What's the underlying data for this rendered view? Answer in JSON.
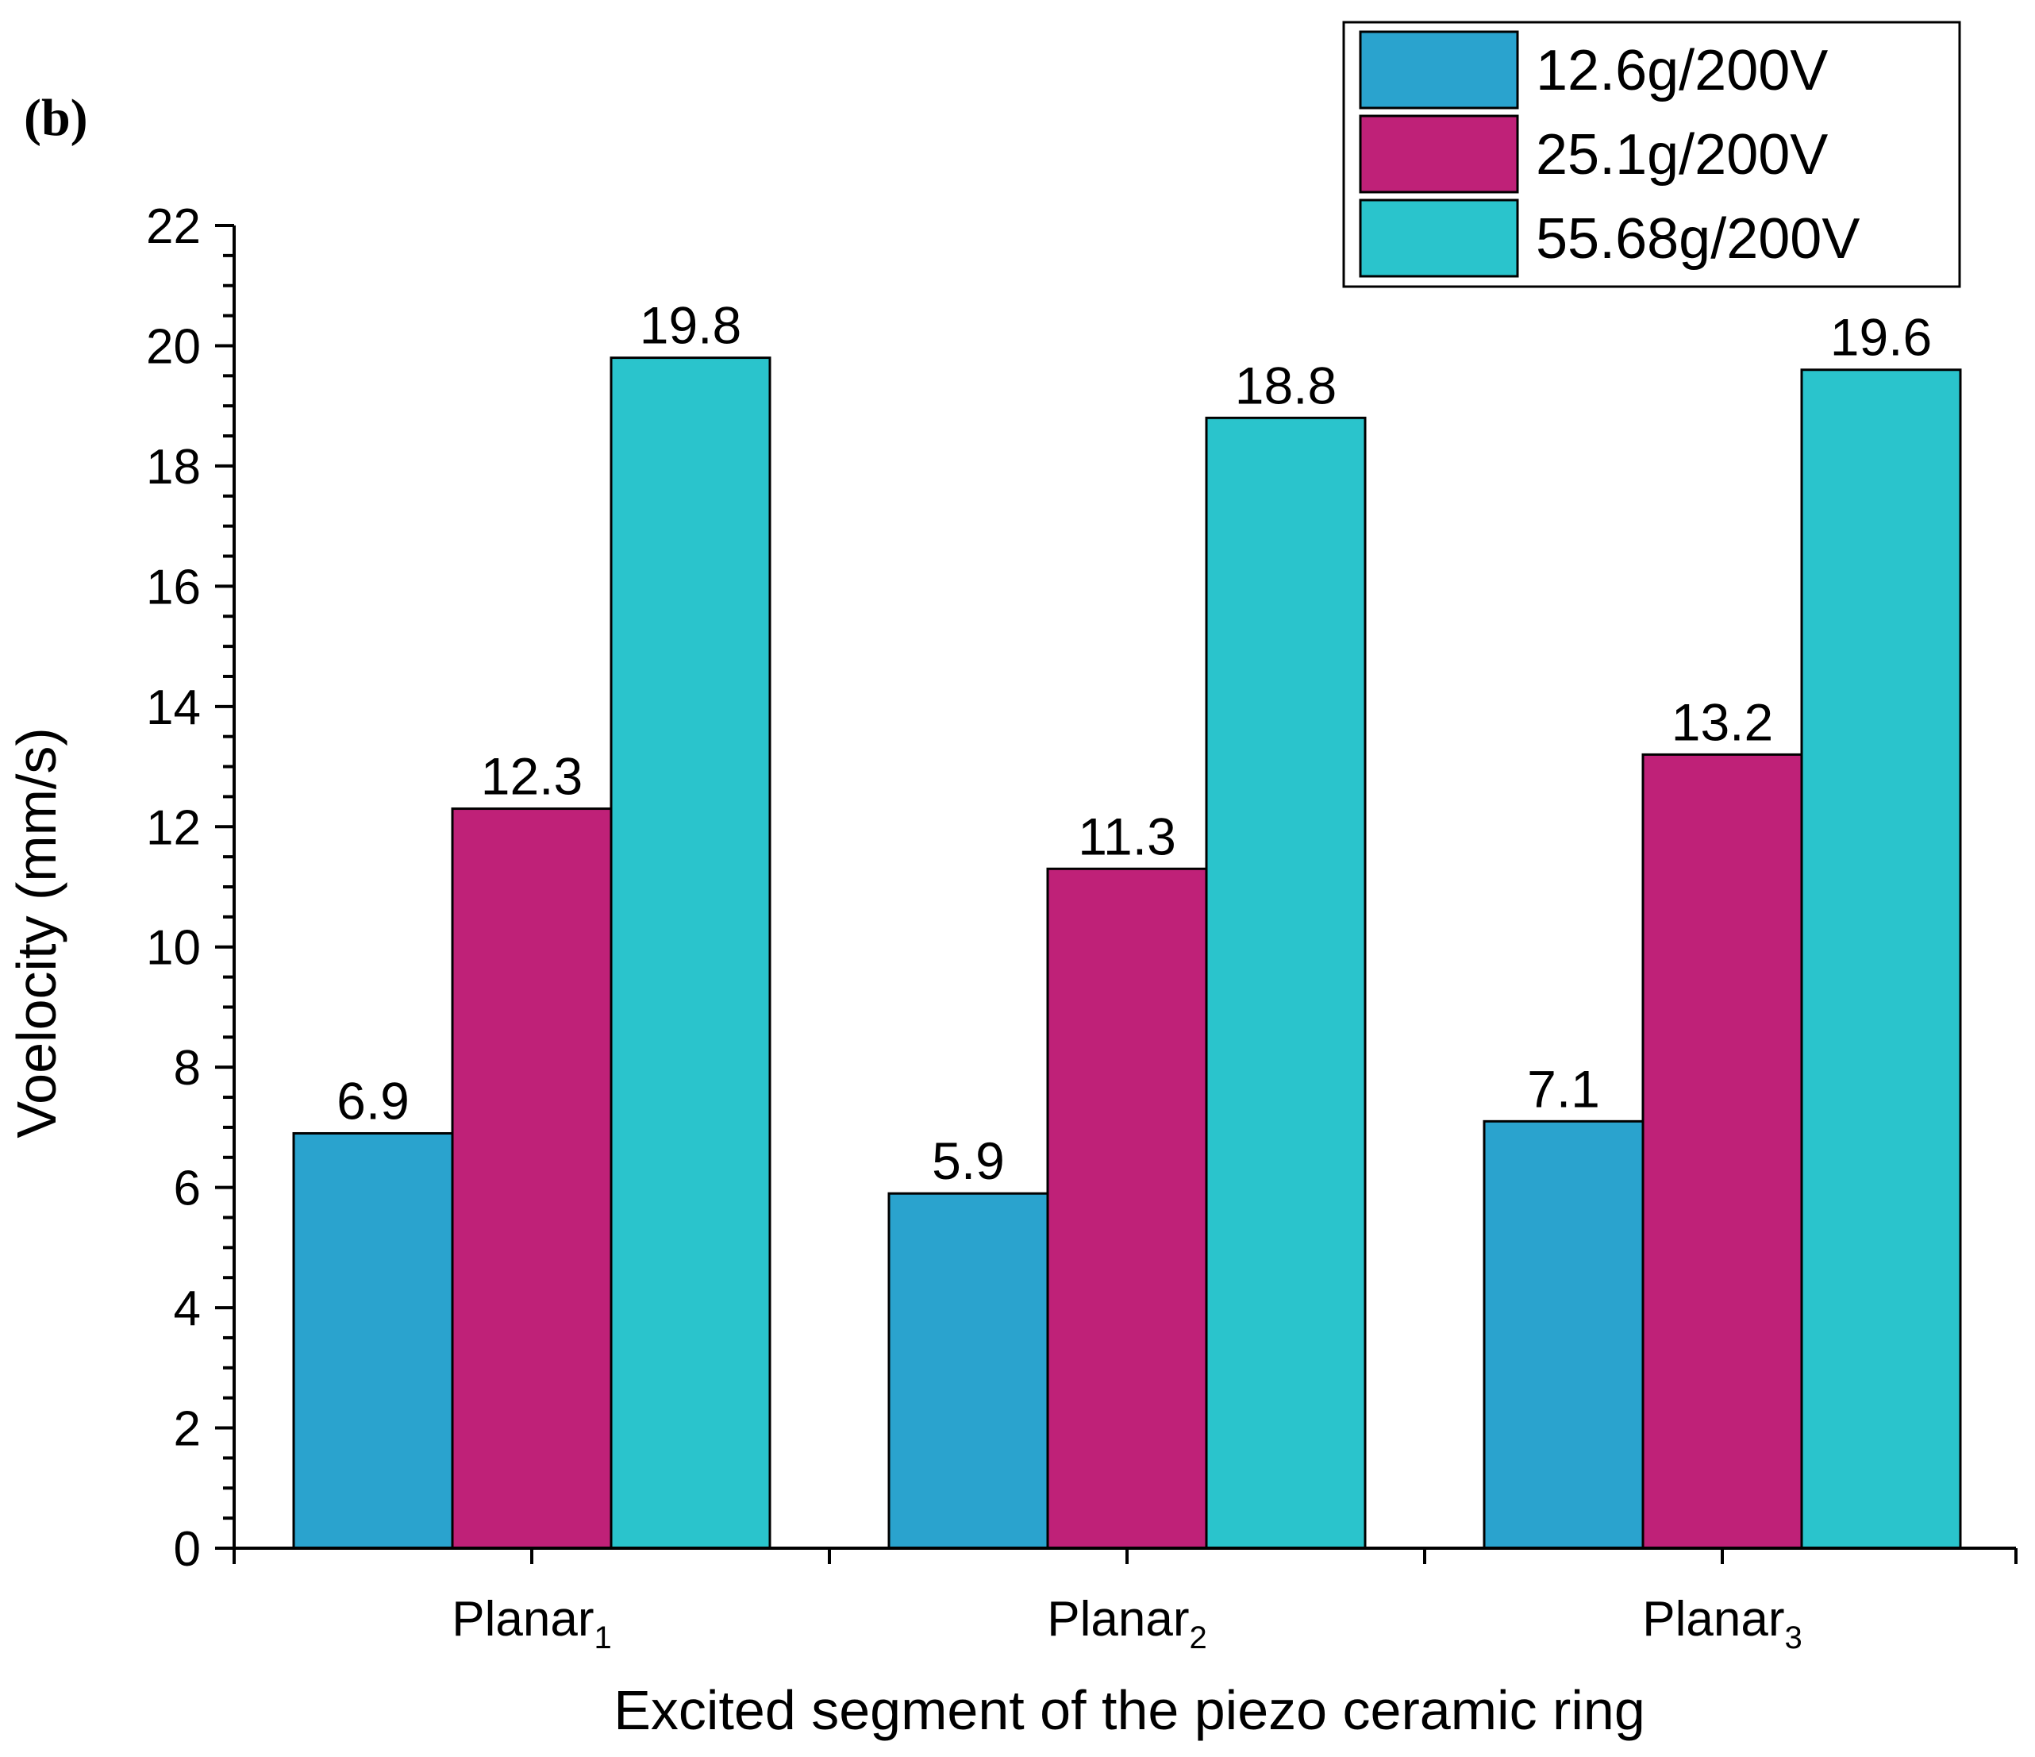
{
  "panel_label": "(b)",
  "chart_data": {
    "type": "bar",
    "title": "",
    "xlabel": "Excited segment of the piezo ceramic ring",
    "ylabel": "Voelocity (mm/s)",
    "categories": [
      {
        "base": "Planar",
        "sub": "1"
      },
      {
        "base": "Planar",
        "sub": "2"
      },
      {
        "base": "Planar",
        "sub": "3"
      }
    ],
    "series": [
      {
        "name": "12.6g/200V",
        "color": "#2AA3CE",
        "values": [
          6.9,
          5.9,
          7.1
        ],
        "labels": [
          "6.9",
          "5.9",
          "7.1"
        ]
      },
      {
        "name": "25.1g/200V",
        "color": "#BF2178",
        "values": [
          12.3,
          11.3,
          13.2
        ],
        "labels": [
          "12.3",
          "11.3",
          "13.2"
        ]
      },
      {
        "name": "55.68g/200V",
        "color": "#2AC4CC",
        "values": [
          19.8,
          18.8,
          19.6
        ],
        "labels": [
          "19.8",
          "18.8",
          "19.6"
        ]
      }
    ],
    "ylim": [
      0,
      22
    ],
    "yticks": [
      "0",
      "2",
      "4",
      "6",
      "8",
      "10",
      "12",
      "14",
      "16",
      "18",
      "20",
      "22"
    ],
    "legend_position": "top-right",
    "grid": false
  }
}
